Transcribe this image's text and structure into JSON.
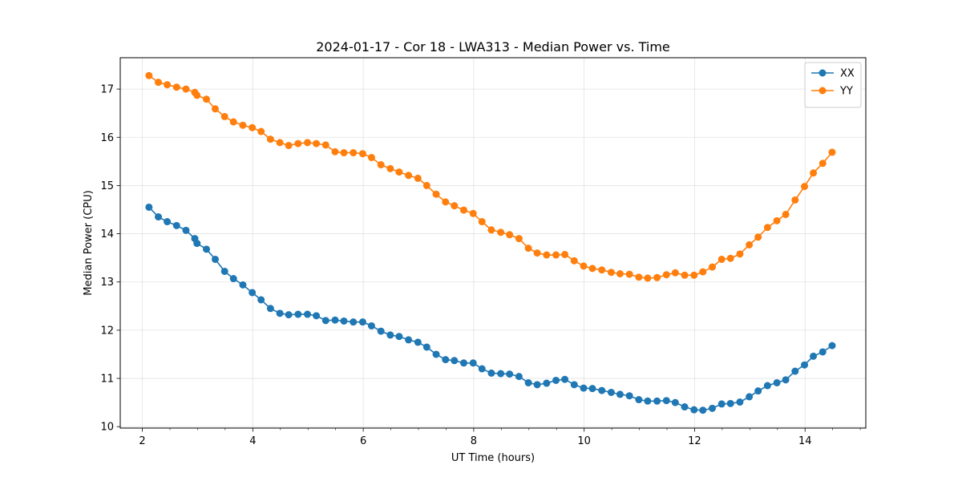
{
  "chart_data": {
    "type": "line",
    "title": "2024-01-17 - Cor 18 - LWA313 - Median Power vs. Time",
    "xlabel": "UT Time (hours)",
    "ylabel": "Median Power (CPU)",
    "xlim": [
      1.6,
      15.1
    ],
    "ylim": [
      9.97,
      17.65
    ],
    "xticks": [
      2,
      4,
      6,
      8,
      10,
      12,
      14
    ],
    "xticks_minor_step": 0.5,
    "yticks": [
      10,
      11,
      12,
      13,
      14,
      15,
      16,
      17
    ],
    "grid": true,
    "legend_position": "top-right",
    "x": [
      2.12,
      2.29,
      2.45,
      2.62,
      2.79,
      2.95,
      2.99,
      3.16,
      3.32,
      3.49,
      3.65,
      3.82,
      3.99,
      4.15,
      4.32,
      4.49,
      4.65,
      4.82,
      4.99,
      5.15,
      5.32,
      5.49,
      5.65,
      5.82,
      5.99,
      6.15,
      6.32,
      6.49,
      6.65,
      6.82,
      6.99,
      7.15,
      7.32,
      7.49,
      7.65,
      7.82,
      7.99,
      8.15,
      8.32,
      8.49,
      8.65,
      8.82,
      8.99,
      9.15,
      9.32,
      9.49,
      9.65,
      9.82,
      9.99,
      10.15,
      10.32,
      10.49,
      10.65,
      10.82,
      10.99,
      11.15,
      11.32,
      11.49,
      11.65,
      11.82,
      11.99,
      12.15,
      12.32,
      12.49,
      12.65,
      12.82,
      12.99,
      13.15,
      13.32,
      13.49,
      13.65,
      13.82,
      13.99,
      14.15,
      14.32,
      14.49
    ],
    "series": [
      {
        "name": "XX",
        "color": "#1f77b4",
        "values": [
          14.55,
          14.35,
          14.25,
          14.17,
          14.07,
          13.9,
          13.8,
          13.68,
          13.47,
          13.22,
          13.07,
          12.94,
          12.78,
          12.63,
          12.45,
          12.35,
          12.32,
          12.33,
          12.33,
          12.3,
          12.2,
          12.21,
          12.19,
          12.17,
          12.17,
          12.09,
          11.98,
          11.9,
          11.87,
          11.8,
          11.75,
          11.65,
          11.5,
          11.39,
          11.37,
          11.32,
          11.32,
          11.2,
          11.11,
          11.1,
          11.09,
          11.04,
          10.91,
          10.87,
          10.9,
          10.96,
          10.98,
          10.87,
          10.8,
          10.79,
          10.75,
          10.71,
          10.67,
          10.64,
          10.56,
          10.53,
          10.53,
          10.54,
          10.5,
          10.41,
          10.35,
          10.34,
          10.38,
          10.47,
          10.48,
          10.51,
          10.62,
          10.74,
          10.85,
          10.91,
          10.97,
          11.15,
          11.28,
          11.46,
          11.55,
          11.68
        ]
      },
      {
        "name": "YY",
        "color": "#ff7f0e",
        "values": [
          17.28,
          17.14,
          17.09,
          17.04,
          17.0,
          16.93,
          16.87,
          16.79,
          16.59,
          16.43,
          16.32,
          16.25,
          16.2,
          16.12,
          15.96,
          15.89,
          15.83,
          15.87,
          15.89,
          15.87,
          15.84,
          15.7,
          15.68,
          15.68,
          15.66,
          15.58,
          15.43,
          15.35,
          15.28,
          15.21,
          15.15,
          15.0,
          14.82,
          14.66,
          14.58,
          14.49,
          14.42,
          14.25,
          14.08,
          14.03,
          13.98,
          13.9,
          13.7,
          13.6,
          13.56,
          13.56,
          13.57,
          13.44,
          13.33,
          13.28,
          13.25,
          13.2,
          13.17,
          13.16,
          13.1,
          13.08,
          13.09,
          13.15,
          13.19,
          13.14,
          13.14,
          13.21,
          13.31,
          13.47,
          13.49,
          13.58,
          13.77,
          13.93,
          14.13,
          14.27,
          14.4,
          14.7,
          14.98,
          15.26,
          15.46,
          15.69
        ]
      }
    ]
  }
}
